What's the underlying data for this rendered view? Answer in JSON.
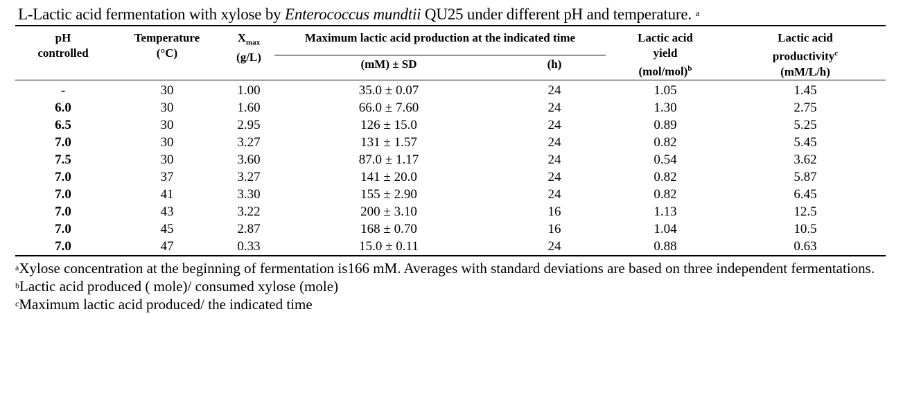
{
  "caption": {
    "prefix": "L-Lactic acid fermentation with xylose by ",
    "organism": "Enterococcus mundtii",
    "suffix": " QU25 under different pH and temperature.",
    "mark": "a"
  },
  "headers": {
    "ph": "pH",
    "ph2": "controlled",
    "temp": "Temperature",
    "temp_unit": "(°C)",
    "xmax_base": "X",
    "xmax_sub": "max",
    "xmax_unit": "(g/L)",
    "max_prod": "Maximum lactic acid production at the indicated time",
    "mm_sd": "(mM) ± SD",
    "h": "(h)",
    "yield1": "Lactic acid",
    "yield2": "yield",
    "yield_unit": "(mol/mol)",
    "yield_mark": "b",
    "prod1": "Lactic acid",
    "prod2": "productivity",
    "prod_mark": "c",
    "prod_unit": "(mM/L/h)"
  },
  "rows": [
    {
      "ph": "-",
      "temp": "30",
      "xmax": "1.00",
      "prod": "35.0 ± 0.07",
      "time": "24",
      "yield": "1.05",
      "productivity": "1.45"
    },
    {
      "ph": "6.0",
      "temp": "30",
      "xmax": "1.60",
      "prod": "66.0 ± 7.60",
      "time": "24",
      "yield": "1.30",
      "productivity": "2.75"
    },
    {
      "ph": "6.5",
      "temp": "30",
      "xmax": "2.95",
      "prod": "126 ± 15.0",
      "time": "24",
      "yield": "0.89",
      "productivity": "5.25"
    },
    {
      "ph": "7.0",
      "temp": "30",
      "xmax": "3.27",
      "prod": "131 ± 1.57",
      "time": "24",
      "yield": "0.82",
      "productivity": "5.45"
    },
    {
      "ph": "7.5",
      "temp": "30",
      "xmax": "3.60",
      "prod": "87.0 ± 1.17",
      "time": "24",
      "yield": "0.54",
      "productivity": "3.62"
    },
    {
      "ph": "7.0",
      "temp": "37",
      "xmax": "3.27",
      "prod": "141 ± 20.0",
      "time": "24",
      "yield": "0.82",
      "productivity": "5.87"
    },
    {
      "ph": "7.0",
      "temp": "41",
      "xmax": "3.30",
      "prod": "155 ± 2.90",
      "time": "24",
      "yield": "0.82",
      "productivity": "6.45"
    },
    {
      "ph": "7.0",
      "temp": "43",
      "xmax": "3.22",
      "prod": "200 ± 3.10",
      "time": "16",
      "yield": "1.13",
      "productivity": "12.5"
    },
    {
      "ph": "7.0",
      "temp": "45",
      "xmax": "2.87",
      "prod": "168 ± 0.70",
      "time": "16",
      "yield": "1.04",
      "productivity": "10.5"
    },
    {
      "ph": "7.0",
      "temp": "47",
      "xmax": "0.33",
      "prod": "15.0 ± 0.11",
      "time": "24",
      "yield": "0.88",
      "productivity": "0.63"
    }
  ],
  "notes": [
    {
      "mark": "a",
      "text": "Xylose concentration at the beginning of fermentation is166 mM. Averages with standard deviations are based on three independent fermentations."
    },
    {
      "mark": "b",
      "text": "Lactic acid produced ( mole)/ consumed xylose (mole)"
    },
    {
      "mark": "c",
      "text": "Maximum lactic acid produced/ the indicated time"
    }
  ]
}
